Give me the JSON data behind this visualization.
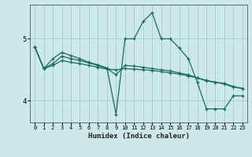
{
  "xlabel": "Humidex (Indice chaleur)",
  "bg_color": "#cce8e8",
  "line_color": "#1a6b62",
  "grid_color": "#aacfcf",
  "xlim": [
    -0.5,
    23.5
  ],
  "ylim": [
    3.65,
    5.55
  ],
  "yticks": [
    4,
    5
  ],
  "xticks": [
    0,
    1,
    2,
    3,
    4,
    5,
    6,
    7,
    8,
    9,
    10,
    11,
    12,
    13,
    14,
    15,
    16,
    17,
    18,
    19,
    20,
    21,
    22,
    23
  ],
  "line1_x": [
    0,
    1,
    2,
    3,
    4,
    5,
    6,
    7,
    8,
    9,
    10,
    11,
    12,
    13,
    14,
    15,
    16,
    17,
    18,
    19,
    20,
    21,
    22,
    23
  ],
  "line1_y": [
    4.87,
    4.52,
    4.57,
    4.65,
    4.62,
    4.6,
    4.57,
    4.54,
    4.51,
    4.5,
    4.52,
    4.51,
    4.5,
    4.49,
    4.47,
    4.45,
    4.43,
    4.4,
    4.37,
    4.33,
    4.3,
    4.28,
    4.23,
    4.2
  ],
  "line2_x": [
    0,
    1,
    2,
    3,
    4,
    5,
    6,
    7,
    8,
    9,
    10,
    11,
    12,
    13,
    14,
    15,
    16,
    17,
    18,
    19,
    20,
    21,
    22,
    23
  ],
  "line2_y": [
    4.87,
    4.52,
    4.68,
    4.78,
    4.73,
    4.68,
    4.62,
    4.58,
    4.53,
    3.78,
    5.0,
    5.0,
    5.28,
    5.42,
    5.0,
    5.0,
    4.85,
    4.68,
    4.3,
    3.87,
    3.87,
    3.87,
    4.08,
    4.08
  ],
  "line3_x": [
    0,
    1,
    2,
    3,
    4,
    5,
    6,
    7,
    8,
    9,
    10,
    11,
    12,
    13,
    14,
    15,
    16,
    17,
    18,
    19,
    20,
    21,
    22,
    23
  ],
  "line3_y": [
    4.87,
    4.52,
    4.6,
    4.72,
    4.68,
    4.65,
    4.61,
    4.57,
    4.52,
    4.42,
    4.57,
    4.56,
    4.54,
    4.52,
    4.5,
    4.48,
    4.45,
    4.42,
    4.37,
    4.32,
    4.3,
    4.27,
    4.22,
    4.2
  ]
}
